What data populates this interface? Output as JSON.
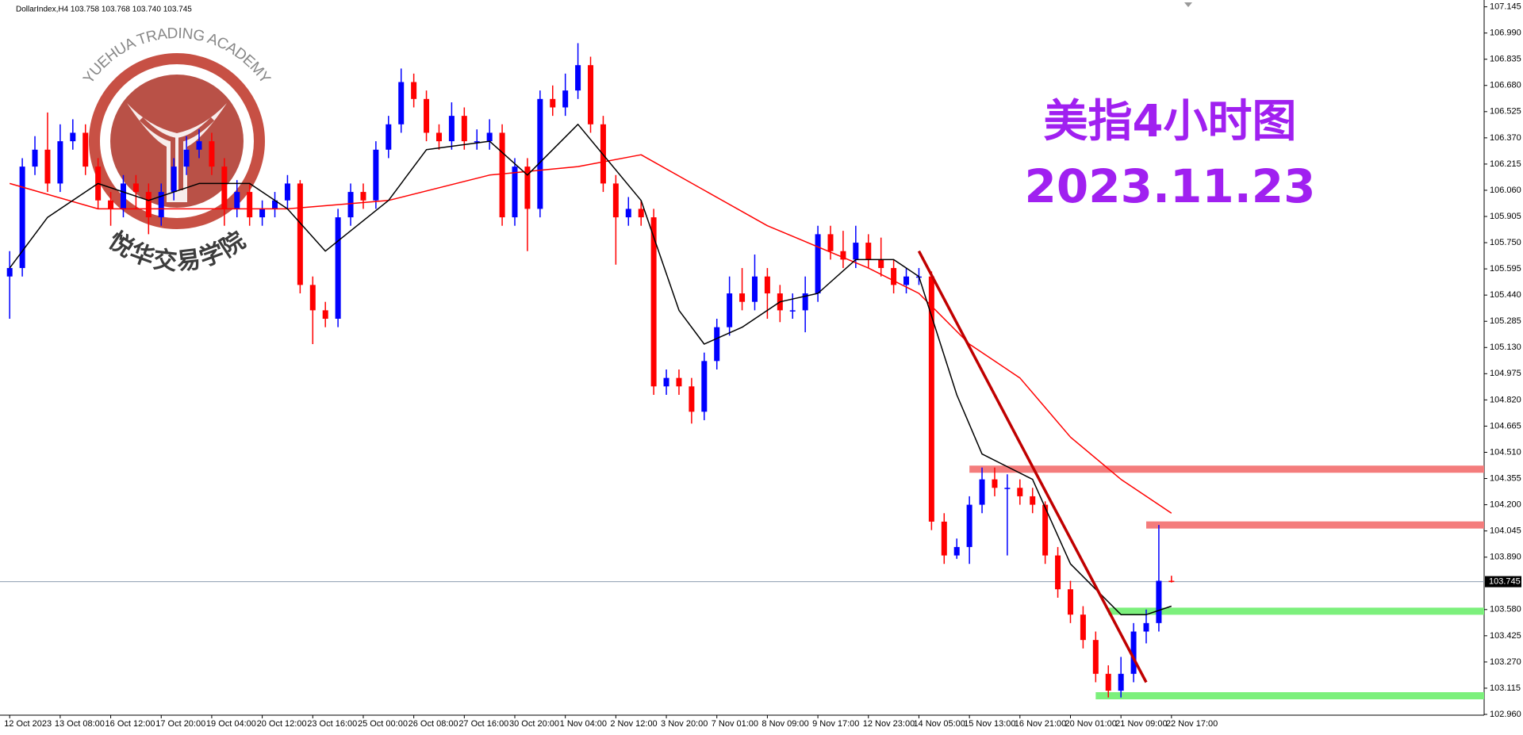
{
  "chart_data": {
    "type": "candlestick",
    "header": "DollarIndex,H4  103.758 103.768 103.740 103.745",
    "title": "美指4小时图",
    "subtitle": "2023.11.23",
    "watermark_en": "YUEHUA TRADING ACADEMY",
    "watermark_cn": "悦华交易学院",
    "up_color": "#0000ff",
    "down_color": "#ff0000",
    "ylim": [
      102.96,
      107.145
    ],
    "yticks": [
      107.145,
      {
        "value": 106.99,
        "label": "106.990"
      },
      106.835,
      {
        "value": 106.68,
        "label": "106.680"
      },
      106.525,
      {
        "value": 106.37,
        "label": "106.370"
      },
      106.215,
      {
        "value": 106.06,
        "label": "106.060"
      },
      105.905,
      {
        "value": 105.75,
        "label": "105.750"
      },
      105.595,
      {
        "value": 105.44,
        "label": "105.440"
      },
      105.285,
      {
        "value": 105.13,
        "label": "105.130"
      },
      104.975,
      {
        "value": 104.82,
        "label": "104.820"
      },
      104.665,
      {
        "value": 104.51,
        "label": "104.510"
      },
      104.355,
      {
        "value": 104.2,
        "label": "104.200"
      },
      104.045,
      {
        "value": 103.89,
        "label": "103.890"
      },
      {
        "value": 103.58,
        "label": "103.580"
      },
      103.425,
      {
        "value": 103.27,
        "label": "103.270"
      },
      103.115,
      {
        "value": 102.96,
        "label": "102.960"
      }
    ],
    "current_price": 103.745,
    "categories": [
      "12 Oct 2023",
      null,
      null,
      null,
      "13 Oct 08:00",
      null,
      null,
      null,
      "16 Oct 12:00",
      null,
      null,
      null,
      "17 Oct 20:00",
      null,
      null,
      null,
      "19 Oct 04:00",
      null,
      null,
      null,
      "20 Oct 12:00",
      null,
      null,
      null,
      "23 Oct 16:00",
      null,
      null,
      null,
      "25 Oct 00:00",
      null,
      null,
      null,
      "26 Oct 08:00",
      null,
      null,
      null,
      "27 Oct 16:00",
      null,
      null,
      null,
      "30 Oct 20:00",
      null,
      null,
      null,
      "1 Nov 04:00",
      null,
      null,
      null,
      "2 Nov 12:00",
      null,
      null,
      null,
      "3 Nov 20:00",
      null,
      null,
      null,
      "7 Nov 01:00",
      null,
      null,
      null,
      "8 Nov 09:00",
      null,
      null,
      null,
      "9 Nov 17:00",
      null,
      null,
      null,
      "12 Nov 23:00",
      null,
      null,
      null,
      "14 Nov 05:00",
      null,
      null,
      null,
      "15 Nov 13:00",
      null,
      null,
      null,
      "16 Nov 21:00",
      null,
      null,
      null,
      "20 Nov 01:00",
      null,
      null,
      null,
      "21 Nov 09:00",
      null,
      null,
      null,
      "22 Nov 17:00"
    ],
    "candles": [
      [
        105.55,
        105.7,
        105.3,
        105.6
      ],
      [
        105.6,
        106.25,
        105.55,
        106.2
      ],
      [
        106.2,
        106.38,
        106.15,
        106.3
      ],
      [
        106.3,
        106.52,
        106.05,
        106.1
      ],
      [
        106.1,
        106.45,
        106.05,
        106.35
      ],
      [
        106.35,
        106.48,
        106.3,
        106.4
      ],
      [
        106.4,
        106.45,
        106.15,
        106.2
      ],
      [
        106.2,
        106.25,
        105.95,
        106.0
      ],
      [
        106.0,
        106.05,
        105.85,
        105.95
      ],
      [
        105.95,
        106.15,
        105.9,
        106.1
      ],
      [
        106.1,
        106.15,
        105.95,
        106.05
      ],
      [
        106.05,
        106.1,
        105.8,
        105.9
      ],
      [
        105.9,
        106.1,
        105.85,
        106.05
      ],
      [
        106.05,
        106.25,
        106.0,
        106.2
      ],
      [
        106.2,
        106.38,
        106.15,
        106.3
      ],
      [
        106.3,
        106.42,
        106.25,
        106.35
      ],
      [
        106.35,
        106.4,
        106.15,
        106.2
      ],
      [
        106.2,
        106.25,
        105.85,
        105.95
      ],
      [
        105.95,
        106.12,
        105.9,
        106.05
      ],
      [
        106.05,
        106.1,
        105.85,
        105.9
      ],
      [
        105.9,
        106.0,
        105.85,
        105.95
      ],
      [
        105.95,
        106.05,
        105.9,
        106.0
      ],
      [
        106.0,
        106.15,
        105.95,
        106.1
      ],
      [
        106.1,
        106.12,
        105.45,
        105.5
      ],
      [
        105.5,
        105.55,
        105.15,
        105.35
      ],
      [
        105.35,
        105.4,
        105.25,
        105.3
      ],
      [
        105.3,
        105.95,
        105.25,
        105.9
      ],
      [
        105.9,
        106.1,
        105.85,
        106.05
      ],
      [
        106.05,
        106.1,
        105.95,
        106.0
      ],
      [
        106.0,
        106.35,
        105.95,
        106.3
      ],
      [
        106.3,
        106.5,
        106.25,
        106.45
      ],
      [
        106.45,
        106.78,
        106.4,
        106.7
      ],
      [
        106.7,
        106.75,
        106.55,
        106.6
      ],
      [
        106.6,
        106.65,
        106.35,
        106.4
      ],
      [
        106.4,
        106.45,
        106.3,
        106.35
      ],
      [
        106.35,
        106.58,
        106.3,
        106.5
      ],
      [
        106.5,
        106.55,
        106.3,
        106.35
      ],
      [
        106.35,
        106.42,
        106.3,
        106.35
      ],
      [
        106.35,
        106.48,
        106.3,
        106.4
      ],
      [
        106.4,
        106.45,
        105.85,
        105.9
      ],
      [
        105.9,
        106.25,
        105.85,
        106.2
      ],
      [
        106.2,
        106.25,
        105.7,
        105.95
      ],
      [
        105.95,
        106.65,
        105.9,
        106.6
      ],
      [
        106.6,
        106.68,
        106.5,
        106.55
      ],
      [
        106.55,
        106.75,
        106.5,
        106.65
      ],
      [
        106.65,
        106.93,
        106.6,
        106.8
      ],
      [
        106.8,
        106.85,
        106.4,
        106.45
      ],
      [
        106.45,
        106.5,
        106.05,
        106.1
      ],
      [
        106.1,
        106.15,
        105.62,
        105.9
      ],
      [
        105.9,
        106.02,
        105.85,
        105.95
      ],
      [
        105.95,
        106.0,
        105.85,
        105.9
      ],
      [
        105.9,
        105.95,
        104.85,
        104.9
      ],
      [
        104.9,
        105.0,
        104.85,
        104.95
      ],
      [
        104.95,
        105.0,
        104.85,
        104.9
      ],
      [
        104.9,
        104.95,
        104.68,
        104.75
      ],
      [
        104.75,
        105.1,
        104.7,
        105.05
      ],
      [
        105.05,
        105.3,
        105.0,
        105.25
      ],
      [
        105.25,
        105.55,
        105.2,
        105.45
      ],
      [
        105.45,
        105.6,
        105.35,
        105.4
      ],
      [
        105.4,
        105.68,
        105.35,
        105.55
      ],
      [
        105.55,
        105.6,
        105.3,
        105.45
      ],
      [
        105.45,
        105.5,
        105.28,
        105.35
      ],
      [
        105.35,
        105.45,
        105.3,
        105.35
      ],
      [
        105.35,
        105.55,
        105.22,
        105.45
      ],
      [
        105.45,
        105.85,
        105.4,
        105.8
      ],
      [
        105.8,
        105.85,
        105.65,
        105.7
      ],
      [
        105.7,
        105.82,
        105.6,
        105.65
      ],
      [
        105.65,
        105.85,
        105.6,
        105.75
      ],
      [
        105.75,
        105.8,
        105.6,
        105.65
      ],
      [
        105.65,
        105.78,
        105.55,
        105.6
      ],
      [
        105.6,
        105.65,
        105.45,
        105.5
      ],
      [
        105.5,
        105.6,
        105.45,
        105.55
      ],
      [
        105.55,
        105.6,
        105.5,
        105.55
      ],
      [
        105.55,
        105.58,
        104.05,
        104.1
      ],
      [
        104.1,
        104.15,
        103.85,
        103.9
      ],
      [
        103.9,
        104.0,
        103.88,
        103.95
      ],
      [
        103.95,
        104.25,
        103.85,
        104.2
      ],
      [
        104.2,
        104.42,
        104.15,
        104.35
      ],
      [
        104.35,
        104.42,
        104.25,
        104.3
      ],
      [
        104.3,
        104.38,
        103.9,
        104.3
      ],
      [
        104.3,
        104.35,
        104.2,
        104.25
      ],
      [
        104.25,
        104.3,
        104.15,
        104.2
      ],
      [
        104.2,
        104.22,
        103.85,
        103.9
      ],
      [
        103.9,
        103.95,
        103.65,
        103.7
      ],
      [
        103.7,
        103.75,
        103.5,
        103.55
      ],
      [
        103.55,
        103.6,
        103.35,
        103.4
      ],
      [
        103.4,
        103.45,
        103.15,
        103.2
      ],
      [
        103.2,
        103.25,
        103.06,
        103.1
      ],
      [
        103.1,
        103.3,
        103.06,
        103.2
      ],
      [
        103.2,
        103.5,
        103.15,
        103.45
      ],
      [
        103.45,
        103.58,
        103.38,
        103.5
      ],
      [
        103.5,
        104.08,
        103.45,
        103.75
      ],
      [
        103.75,
        103.78,
        103.74,
        103.745
      ]
    ],
    "lines": [
      {
        "color": "#ff0000",
        "x": [
          0,
          7,
          22,
          30,
          38,
          45,
          50,
          60,
          68,
          72,
          76,
          80,
          84,
          88,
          92
        ],
        "values": [
          106.1,
          105.95,
          105.95,
          106.0,
          106.15,
          106.2,
          106.27,
          105.85,
          105.6,
          105.45,
          105.15,
          104.95,
          104.6,
          104.35,
          104.15
        ]
      },
      {
        "color": "#000000",
        "x": [
          0,
          3,
          7,
          11,
          15,
          19,
          22,
          25,
          30,
          33,
          38,
          41,
          45,
          50,
          53,
          55,
          58,
          61,
          64,
          67,
          70,
          72,
          75,
          77,
          81,
          84,
          88,
          90,
          92
        ],
        "values": [
          105.6,
          105.9,
          106.1,
          106.0,
          106.1,
          106.1,
          105.95,
          105.7,
          106.0,
          106.3,
          106.35,
          106.15,
          106.45,
          106.0,
          105.35,
          105.15,
          105.25,
          105.4,
          105.45,
          105.65,
          105.65,
          105.55,
          104.85,
          104.5,
          104.35,
          103.85,
          103.55,
          103.55,
          103.6
        ]
      }
    ],
    "trendline": {
      "color": "#c00000",
      "x": [
        72,
        90
      ],
      "values": [
        105.7,
        103.15
      ]
    },
    "levels": [
      {
        "value": 104.41,
        "x": 76,
        "color": "#f47c7c"
      },
      {
        "value": 104.08,
        "x": 90,
        "color": "#f47c7c"
      },
      {
        "value": 103.57,
        "x": 87,
        "color": "#7cf07c"
      },
      {
        "value": 103.07,
        "x": 86,
        "color": "#7cf07c"
      }
    ]
  }
}
